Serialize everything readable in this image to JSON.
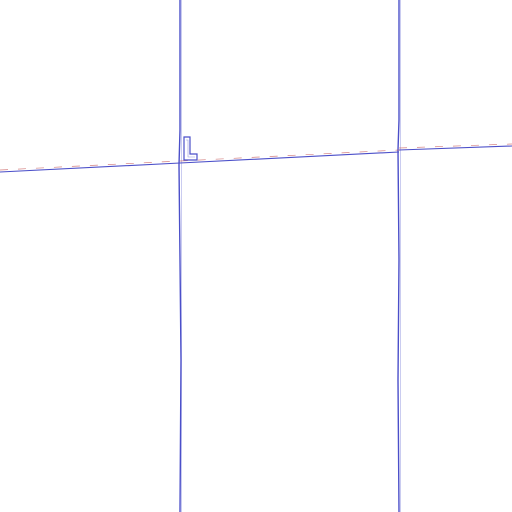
{
  "colors": {
    "background": "#ffffff",
    "line_primary": "#4b4fc9",
    "line_secondary": "#6b6fd6",
    "dash_accent": "#c24b4b"
  },
  "icons": {
    "marker": "small-l-shape-icon"
  }
}
